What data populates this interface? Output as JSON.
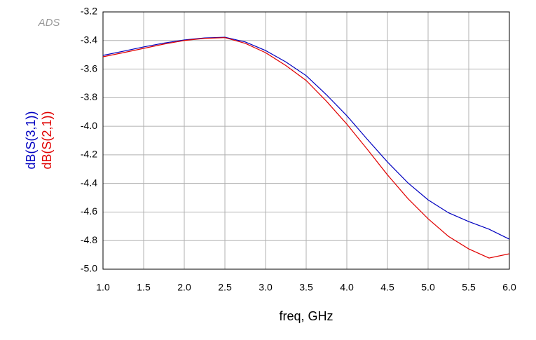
{
  "chart_data": {
    "type": "line",
    "logo": "ADS",
    "xlabel": "freq, GHz",
    "x": [
      1.0,
      1.25,
      1.5,
      1.75,
      2.0,
      2.25,
      2.5,
      2.75,
      3.0,
      3.25,
      3.5,
      3.75,
      4.0,
      4.25,
      4.5,
      4.75,
      5.0,
      5.25,
      5.5,
      5.75,
      6.0
    ],
    "series": [
      {
        "name": "dB(S(3,1))",
        "color": "#0000c0",
        "values": [
          -3.504,
          -3.475,
          -3.445,
          -3.418,
          -3.396,
          -3.382,
          -3.377,
          -3.41,
          -3.47,
          -3.55,
          -3.646,
          -3.78,
          -3.926,
          -4.09,
          -4.25,
          -4.395,
          -4.515,
          -4.605,
          -4.667,
          -4.72,
          -4.79
        ]
      },
      {
        "name": "dB(S(2,1))",
        "color": "#e00000",
        "values": [
          -3.514,
          -3.485,
          -3.455,
          -3.425,
          -3.4,
          -3.385,
          -3.38,
          -3.42,
          -3.485,
          -3.575,
          -3.68,
          -3.825,
          -3.985,
          -4.16,
          -4.34,
          -4.505,
          -4.647,
          -4.77,
          -4.858,
          -4.922,
          -4.892
        ]
      }
    ],
    "xlim": [
      1.0,
      6.0
    ],
    "xticks": [
      {
        "value": 1,
        "label": "1.0"
      },
      1.5,
      {
        "value": 2,
        "label": "2.0"
      },
      2.5,
      {
        "value": 3,
        "label": "3.0"
      },
      3.5,
      {
        "value": 4,
        "label": "4.0"
      },
      4.5,
      {
        "value": 5,
        "label": "5.0"
      },
      5.5,
      {
        "value": 6,
        "label": "6.0"
      }
    ],
    "ylim": [
      -5.0,
      -3.2
    ],
    "yticks": [
      -3.2,
      -3.4,
      -3.6,
      -3.8,
      {
        "value": -4,
        "label": "-4.0"
      },
      -4.2,
      -4.4,
      -4.6,
      -4.8,
      {
        "value": -5,
        "label": "-5.0"
      }
    ],
    "grid": true
  }
}
